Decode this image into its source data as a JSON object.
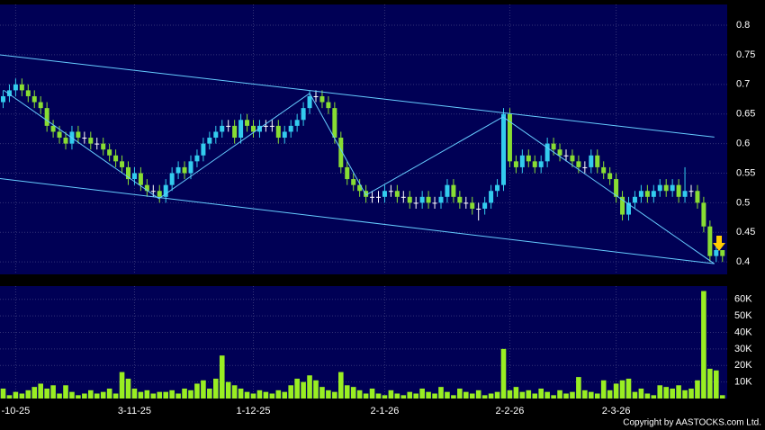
{
  "chart_data": {
    "type": "candlestick",
    "categories": [
      null,
      null,
      "-10-25",
      null,
      null,
      null,
      null,
      null,
      null,
      null,
      null,
      null,
      null,
      null,
      null,
      null,
      null,
      null,
      null,
      null,
      null,
      "3-11-25",
      null,
      null,
      null,
      null,
      null,
      null,
      null,
      null,
      null,
      null,
      null,
      null,
      null,
      null,
      null,
      null,
      null,
      null,
      "1-12-25",
      null,
      null,
      null,
      null,
      null,
      null,
      null,
      null,
      null,
      null,
      null,
      null,
      null,
      null,
      null,
      null,
      null,
      null,
      null,
      null,
      "2-1-26",
      null,
      null,
      null,
      null,
      null,
      null,
      null,
      null,
      null,
      null,
      null,
      null,
      null,
      null,
      null,
      null,
      null,
      null,
      null,
      "2-2-26",
      null,
      null,
      null,
      null,
      null,
      null,
      null,
      null,
      null,
      null,
      null,
      null,
      null,
      null,
      null,
      null,
      "2-3-26",
      null,
      null,
      null,
      null,
      null,
      null,
      null,
      null,
      null,
      null,
      null,
      null,
      null,
      null,
      null,
      null,
      null
    ],
    "open": [
      0.67,
      0.68,
      0.69,
      0.7,
      0.69,
      0.68,
      0.67,
      0.66,
      0.63,
      0.62,
      0.61,
      0.6,
      0.62,
      0.61,
      0.61,
      0.6,
      0.6,
      0.59,
      0.58,
      0.57,
      0.56,
      0.54,
      0.55,
      0.53,
      0.52,
      0.52,
      0.51,
      0.53,
      0.55,
      0.56,
      0.55,
      0.57,
      0.58,
      0.6,
      0.61,
      0.62,
      0.63,
      0.63,
      0.61,
      0.64,
      0.63,
      0.62,
      0.63,
      0.63,
      0.63,
      0.61,
      0.62,
      0.63,
      0.64,
      0.66,
      0.68,
      0.68,
      0.67,
      0.66,
      0.61,
      0.56,
      0.54,
      0.53,
      0.52,
      0.51,
      0.51,
      0.51,
      0.52,
      0.52,
      0.51,
      0.51,
      0.5,
      0.5,
      0.51,
      0.5,
      0.5,
      0.51,
      0.53,
      0.51,
      0.5,
      0.5,
      0.49,
      0.49,
      0.5,
      0.52,
      0.53,
      0.65,
      0.57,
      0.56,
      0.58,
      0.57,
      0.56,
      0.57,
      0.6,
      0.59,
      0.58,
      0.58,
      0.57,
      0.56,
      0.56,
      0.58,
      0.56,
      0.55,
      0.54,
      0.51,
      0.48,
      0.5,
      0.51,
      0.52,
      0.51,
      0.52,
      0.53,
      0.52,
      0.53,
      0.51,
      0.52,
      0.52,
      0.5,
      0.46,
      0.41,
      0.42
    ],
    "high": [
      0.69,
      0.7,
      0.71,
      0.71,
      0.7,
      0.69,
      0.68,
      0.67,
      0.64,
      0.63,
      0.62,
      0.63,
      0.63,
      0.62,
      0.62,
      0.61,
      0.61,
      0.6,
      0.59,
      0.58,
      0.57,
      0.56,
      0.56,
      0.54,
      0.53,
      0.53,
      0.54,
      0.56,
      0.57,
      0.57,
      0.58,
      0.59,
      0.61,
      0.62,
      0.63,
      0.64,
      0.64,
      0.64,
      0.65,
      0.65,
      0.64,
      0.64,
      0.64,
      0.64,
      0.64,
      0.63,
      0.64,
      0.65,
      0.67,
      0.69,
      0.69,
      0.69,
      0.68,
      0.67,
      0.62,
      0.57,
      0.55,
      0.54,
      0.53,
      0.52,
      0.52,
      0.53,
      0.53,
      0.53,
      0.52,
      0.52,
      0.51,
      0.52,
      0.52,
      0.51,
      0.52,
      0.54,
      0.54,
      0.52,
      0.51,
      0.51,
      0.5,
      0.51,
      0.53,
      0.54,
      0.66,
      0.66,
      0.58,
      0.59,
      0.59,
      0.58,
      0.58,
      0.61,
      0.61,
      0.6,
      0.59,
      0.59,
      0.58,
      0.57,
      0.59,
      0.59,
      0.57,
      0.56,
      0.55,
      0.52,
      0.51,
      0.52,
      0.53,
      0.53,
      0.53,
      0.54,
      0.54,
      0.54,
      0.54,
      0.56,
      0.53,
      0.53,
      0.51,
      0.47,
      0.43,
      0.42
    ],
    "low": [
      0.66,
      0.67,
      0.68,
      0.68,
      0.67,
      0.66,
      0.65,
      0.62,
      0.61,
      0.6,
      0.59,
      0.59,
      0.6,
      0.6,
      0.59,
      0.59,
      0.58,
      0.57,
      0.56,
      0.55,
      0.53,
      0.53,
      0.52,
      0.51,
      0.51,
      0.5,
      0.5,
      0.52,
      0.54,
      0.54,
      0.54,
      0.56,
      0.57,
      0.59,
      0.6,
      0.61,
      0.62,
      0.6,
      0.6,
      0.62,
      0.61,
      0.61,
      0.62,
      0.62,
      0.6,
      0.6,
      0.61,
      0.62,
      0.63,
      0.65,
      0.67,
      0.66,
      0.65,
      0.6,
      0.55,
      0.53,
      0.52,
      0.51,
      0.5,
      0.5,
      0.5,
      0.5,
      0.51,
      0.5,
      0.5,
      0.49,
      0.49,
      0.49,
      0.49,
      0.49,
      0.49,
      0.5,
      0.5,
      0.49,
      0.49,
      0.48,
      0.47,
      0.48,
      0.49,
      0.51,
      0.52,
      0.56,
      0.55,
      0.55,
      0.56,
      0.55,
      0.55,
      0.56,
      0.58,
      0.57,
      0.57,
      0.56,
      0.55,
      0.55,
      0.55,
      0.55,
      0.54,
      0.53,
      0.5,
      0.47,
      0.47,
      0.49,
      0.5,
      0.5,
      0.5,
      0.51,
      0.51,
      0.51,
      0.5,
      0.5,
      0.51,
      0.49,
      0.45,
      0.4,
      0.4,
      0.4
    ],
    "close": [
      0.68,
      0.69,
      0.7,
      0.69,
      0.68,
      0.67,
      0.66,
      0.63,
      0.62,
      0.61,
      0.6,
      0.62,
      0.61,
      0.61,
      0.6,
      0.6,
      0.59,
      0.58,
      0.57,
      0.56,
      0.54,
      0.55,
      0.53,
      0.52,
      0.52,
      0.51,
      0.53,
      0.55,
      0.56,
      0.55,
      0.57,
      0.58,
      0.6,
      0.61,
      0.62,
      0.63,
      0.63,
      0.61,
      0.64,
      0.63,
      0.62,
      0.63,
      0.63,
      0.63,
      0.61,
      0.62,
      0.63,
      0.64,
      0.66,
      0.68,
      0.68,
      0.67,
      0.66,
      0.61,
      0.56,
      0.54,
      0.53,
      0.52,
      0.51,
      0.51,
      0.51,
      0.52,
      0.52,
      0.51,
      0.51,
      0.5,
      0.5,
      0.51,
      0.5,
      0.5,
      0.51,
      0.53,
      0.51,
      0.5,
      0.5,
      0.49,
      0.49,
      0.5,
      0.52,
      0.53,
      0.65,
      0.57,
      0.56,
      0.58,
      0.57,
      0.56,
      0.57,
      0.6,
      0.59,
      0.58,
      0.58,
      0.57,
      0.56,
      0.56,
      0.58,
      0.56,
      0.55,
      0.54,
      0.51,
      0.48,
      0.5,
      0.51,
      0.52,
      0.51,
      0.52,
      0.53,
      0.52,
      0.53,
      0.51,
      0.52,
      0.52,
      0.5,
      0.46,
      0.41,
      0.42,
      0.41
    ],
    "volume": [
      6000,
      2000,
      4000,
      3000,
      5000,
      7000,
      9000,
      6000,
      8000,
      3000,
      8000,
      4000,
      2000,
      3000,
      5000,
      3000,
      4000,
      6000,
      3000,
      16000,
      12000,
      6000,
      4000,
      5000,
      3000,
      4000,
      4000,
      5000,
      3000,
      6000,
      5000,
      9000,
      11000,
      6000,
      12000,
      26000,
      10000,
      8000,
      6000,
      4000,
      3000,
      5000,
      4000,
      3000,
      5000,
      4000,
      8000,
      12000,
      10000,
      14000,
      11000,
      7000,
      5000,
      4000,
      16000,
      8000,
      7000,
      5000,
      3000,
      6000,
      3000,
      2000,
      5000,
      3000,
      2000,
      4000,
      3000,
      6000,
      4000,
      3000,
      7000,
      4000,
      2000,
      6000,
      4000,
      3000,
      5000,
      2000,
      3000,
      4000,
      30000,
      5000,
      7000,
      4000,
      5000,
      3000,
      6000,
      4000,
      2000,
      5000,
      3000,
      4000,
      13000,
      5000,
      4000,
      3000,
      11000,
      5000,
      9000,
      11000,
      12000,
      4000,
      6000,
      3000,
      2000,
      8000,
      7000,
      6000,
      8000,
      5000,
      6000,
      11000,
      65000,
      18000,
      17000,
      2000
    ],
    "up_color": "#33ccee",
    "down_color": "#88dd33",
    "volume_color": "#99ee22",
    "ylim": [
      0.379,
      0.835
    ],
    "yticks": [
      0.4,
      0.45,
      0.5,
      0.55,
      0.6,
      0.65,
      0.7,
      0.75,
      0.8
    ],
    "y2lim": [
      0,
      68000
    ],
    "y2ticks": [
      {
        "value": 10000,
        "label": "10K"
      },
      {
        "value": 20000,
        "label": "20K"
      },
      {
        "value": 30000,
        "label": "30K"
      },
      {
        "value": 40000,
        "label": "40K"
      },
      {
        "value": 50000,
        "label": "50K"
      },
      {
        "value": 60000,
        "label": "60K"
      }
    ],
    "trendlines": [
      {
        "color": "#66ccff",
        "x": [
          -0.6,
          113.7
        ],
        "y": [
          0.75,
          0.611
        ]
      },
      {
        "color": "#66ccff",
        "x": [
          -0.6,
          113.7
        ],
        "y": [
          0.541,
          0.397
        ]
      },
      {
        "color": "#66ccff",
        "x": [
          0.1,
          24.9,
          49,
          58,
          79.9,
          113.7
        ],
        "y": [
          0.69,
          0.507,
          0.685,
          0.513,
          0.645,
          0.397
        ]
      }
    ],
    "grid": true,
    "footer": "Copyright by AASTOCKS.com Ltd."
  }
}
